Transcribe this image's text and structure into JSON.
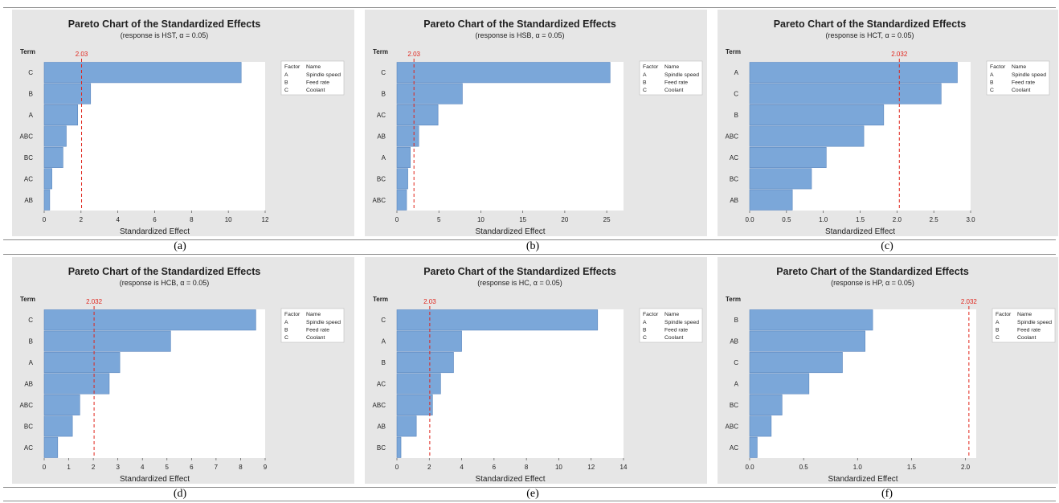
{
  "figure": {
    "captions": [
      "(a)",
      "(b)",
      "(c)",
      "(d)",
      "(e)",
      "(f)"
    ]
  },
  "colors": {
    "bar": "#7ba7d9",
    "bar_edge": "#5a86bd",
    "reference": "#e0241b",
    "panel_bg": "#e6e6e6",
    "plot_bg": "#ffffff"
  },
  "chart_data": [
    {
      "type": "bar",
      "orientation": "horizontal",
      "title": "Pareto Chart of the Standardized Effects",
      "subtitle": "(response is HST, α = 0.05)",
      "ylabel": "Term",
      "xlabel": "Standardized Effect",
      "categories": [
        "C",
        "B",
        "A",
        "ABC",
        "BC",
        "AC",
        "AB"
      ],
      "values": [
        10.7,
        2.52,
        1.82,
        1.2,
        1.02,
        0.42,
        0.3
      ],
      "reference_line": {
        "value": 2.03,
        "label": "2.03"
      },
      "xlim": [
        0,
        12
      ],
      "xticks": [
        0,
        2,
        4,
        6,
        8,
        10,
        12
      ],
      "xtick_labels": [
        "0",
        "2",
        "4",
        "6",
        "8",
        "10",
        "12"
      ],
      "legend": {
        "headers": [
          "Factor",
          "Name"
        ],
        "rows": [
          [
            "A",
            "Spindle speed"
          ],
          [
            "B",
            "Feed rate"
          ],
          [
            "C",
            "Coolant"
          ]
        ],
        "placement": "right"
      }
    },
    {
      "type": "bar",
      "orientation": "horizontal",
      "title": "Pareto Chart of the Standardized Effects",
      "subtitle": "(response is HSB, α = 0.05)",
      "ylabel": "Term",
      "xlabel": "Standardized Effect",
      "categories": [
        "C",
        "B",
        "AC",
        "AB",
        "A",
        "BC",
        "ABC"
      ],
      "values": [
        25.4,
        7.8,
        4.9,
        2.6,
        1.6,
        1.3,
        1.15
      ],
      "reference_line": {
        "value": 2.03,
        "label": "2.03"
      },
      "xlim": [
        0,
        27
      ],
      "xticks": [
        0,
        5,
        10,
        15,
        20,
        25
      ],
      "xtick_labels": [
        "0",
        "5",
        "10",
        "15",
        "20",
        "25"
      ],
      "legend": {
        "headers": [
          "Factor",
          "Name"
        ],
        "rows": [
          [
            "A",
            "Spindle speed"
          ],
          [
            "B",
            "Feed rate"
          ],
          [
            "C",
            "Coolant"
          ]
        ],
        "placement": "right"
      }
    },
    {
      "type": "bar",
      "orientation": "horizontal",
      "title": "Pareto Chart of the Standardized Effects",
      "subtitle": "(response is HCT, α = 0.05)",
      "ylabel": "Term",
      "xlabel": "Standardized Effect",
      "categories": [
        "A",
        "C",
        "B",
        "ABC",
        "AC",
        "BC",
        "AB"
      ],
      "values": [
        2.82,
        2.6,
        1.82,
        1.55,
        1.04,
        0.84,
        0.58
      ],
      "reference_line": {
        "value": 2.032,
        "label": "2.032"
      },
      "xlim": [
        0,
        3.0
      ],
      "xticks": [
        0,
        0.5,
        1.0,
        1.5,
        2.0,
        2.5,
        3.0
      ],
      "xtick_labels": [
        "0.0",
        "0.5",
        "1.0",
        "1.5",
        "2.0",
        "2.5",
        "3.0"
      ],
      "legend": {
        "headers": [
          "Factor",
          "Name"
        ],
        "rows": [
          [
            "A",
            "Spindle speed"
          ],
          [
            "B",
            "Feed rate"
          ],
          [
            "C",
            "Coolant"
          ]
        ],
        "placement": "right"
      }
    },
    {
      "type": "bar",
      "orientation": "horizontal",
      "title": "Pareto Chart of the Standardized Effects",
      "subtitle": "(response is HCB, α = 0.05)",
      "ylabel": "Term",
      "xlabel": "Standardized Effect",
      "categories": [
        "C",
        "B",
        "A",
        "AB",
        "ABC",
        "BC",
        "AC"
      ],
      "values": [
        8.62,
        5.15,
        3.08,
        2.65,
        1.45,
        1.15,
        0.55
      ],
      "reference_line": {
        "value": 2.032,
        "label": "2.032"
      },
      "xlim": [
        0,
        9
      ],
      "xticks": [
        0,
        1,
        2,
        3,
        4,
        5,
        6,
        7,
        8,
        9
      ],
      "xtick_labels": [
        "0",
        "1",
        "2",
        "3",
        "4",
        "5",
        "6",
        "7",
        "8",
        "9"
      ],
      "legend": {
        "headers": [
          "Factor",
          "Name"
        ],
        "rows": [
          [
            "A",
            "Spindle speed"
          ],
          [
            "B",
            "Feed rate"
          ],
          [
            "C",
            "Coolant"
          ]
        ],
        "placement": "right"
      }
    },
    {
      "type": "bar",
      "orientation": "horizontal",
      "title": "Pareto Chart of the Standardized Effects",
      "subtitle": "(response is HC, α = 0.05)",
      "ylabel": "Term",
      "xlabel": "Standardized Effect",
      "categories": [
        "C",
        "A",
        "B",
        "AC",
        "ABC",
        "AB",
        "BC"
      ],
      "values": [
        12.4,
        4.0,
        3.5,
        2.7,
        2.2,
        1.2,
        0.25
      ],
      "reference_line": {
        "value": 2.03,
        "label": "2.03"
      },
      "xlim": [
        0,
        14
      ],
      "xticks": [
        0,
        2,
        4,
        6,
        8,
        10,
        12,
        14
      ],
      "xtick_labels": [
        "0",
        "2",
        "4",
        "6",
        "8",
        "10",
        "12",
        "14"
      ],
      "legend": {
        "headers": [
          "Factor",
          "Name"
        ],
        "rows": [
          [
            "A",
            "Spindle speed"
          ],
          [
            "B",
            "Feed rate"
          ],
          [
            "C",
            "Coolant"
          ]
        ],
        "placement": "right"
      }
    },
    {
      "type": "bar",
      "orientation": "horizontal",
      "title": "Pareto Chart of the Standardized Effects",
      "subtitle": "(response is HP, α = 0.05)",
      "ylabel": "Term",
      "xlabel": "Standardized Effect",
      "categories": [
        "B",
        "AB",
        "C",
        "A",
        "BC",
        "ABC",
        "AC"
      ],
      "values": [
        1.14,
        1.07,
        0.86,
        0.55,
        0.3,
        0.2,
        0.07
      ],
      "reference_line": {
        "value": 2.032,
        "label": "2.032"
      },
      "xlim": [
        0,
        2.1
      ],
      "xticks": [
        0,
        0.5,
        1.0,
        1.5,
        2.0
      ],
      "xtick_labels": [
        "0.0",
        "0.5",
        "1.0",
        "1.5",
        "2.0"
      ],
      "legend": {
        "headers": [
          "Factor",
          "Name"
        ],
        "rows": [
          [
            "A",
            "Spindle speed"
          ],
          [
            "B",
            "Feed rate"
          ],
          [
            "C",
            "Coolant"
          ]
        ],
        "placement": "right"
      }
    }
  ]
}
